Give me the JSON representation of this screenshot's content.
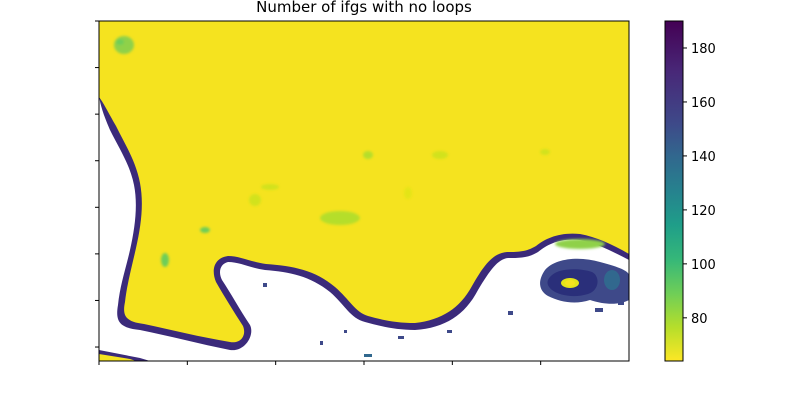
{
  "chart_data": {
    "type": "heatmap",
    "title": "Number of ifgs with no loops",
    "xlabel": "",
    "ylabel": "",
    "x_tick_labels": [],
    "y_tick_labels": [],
    "x_tick_count": 6,
    "y_tick_count": 8,
    "colormap": "viridis_r",
    "no_data_color": "#ffffff",
    "colorbar": {
      "range": [
        64,
        190
      ],
      "ticks": [
        80,
        100,
        120,
        140,
        160,
        180
      ]
    },
    "value_summary": {
      "dominant_value": 64,
      "coastal_edge_value_range": [
        150,
        190
      ],
      "inland_patch_value_range": [
        80,
        100
      ]
    },
    "colors": {
      "low": "#f5e31f",
      "high": "#440154"
    }
  }
}
